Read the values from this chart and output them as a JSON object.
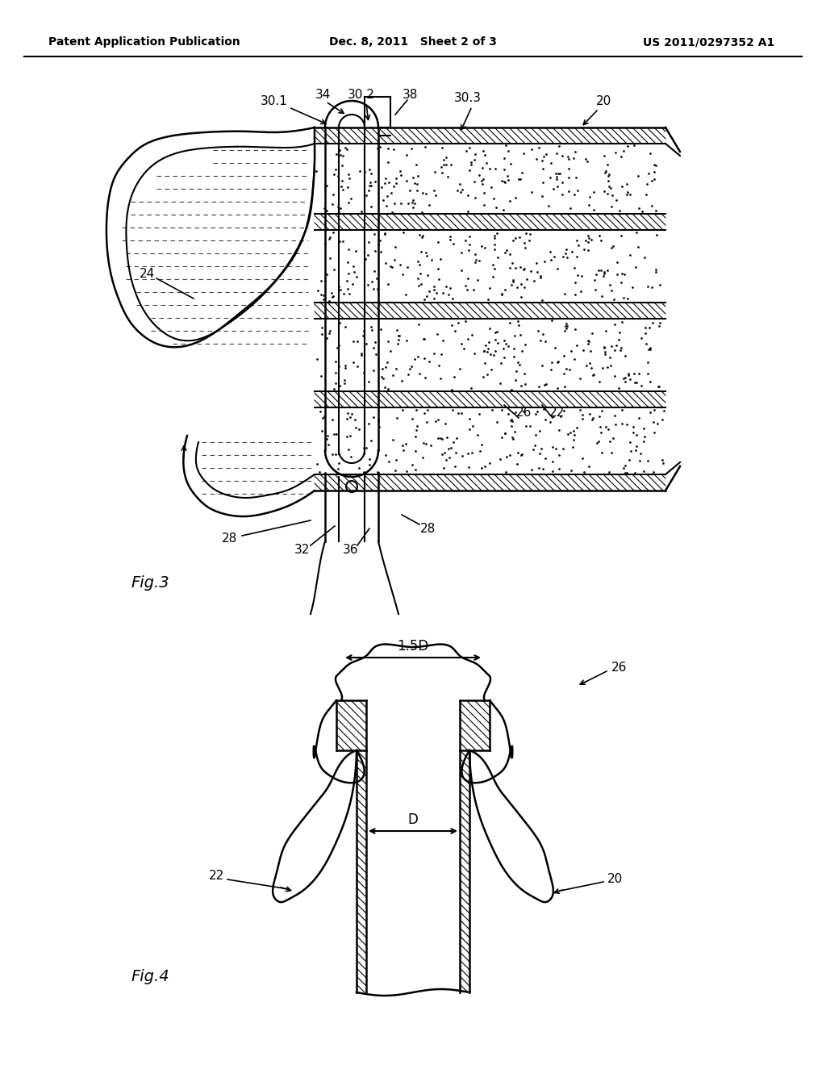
{
  "background_color": "#ffffff",
  "header_left": "Patent Application Publication",
  "header_center": "Dec. 8, 2011   Sheet 2 of 3",
  "header_right": "US 2011/0297352 A1",
  "fig3_label": "Fig.3",
  "fig4_label": "Fig.4"
}
